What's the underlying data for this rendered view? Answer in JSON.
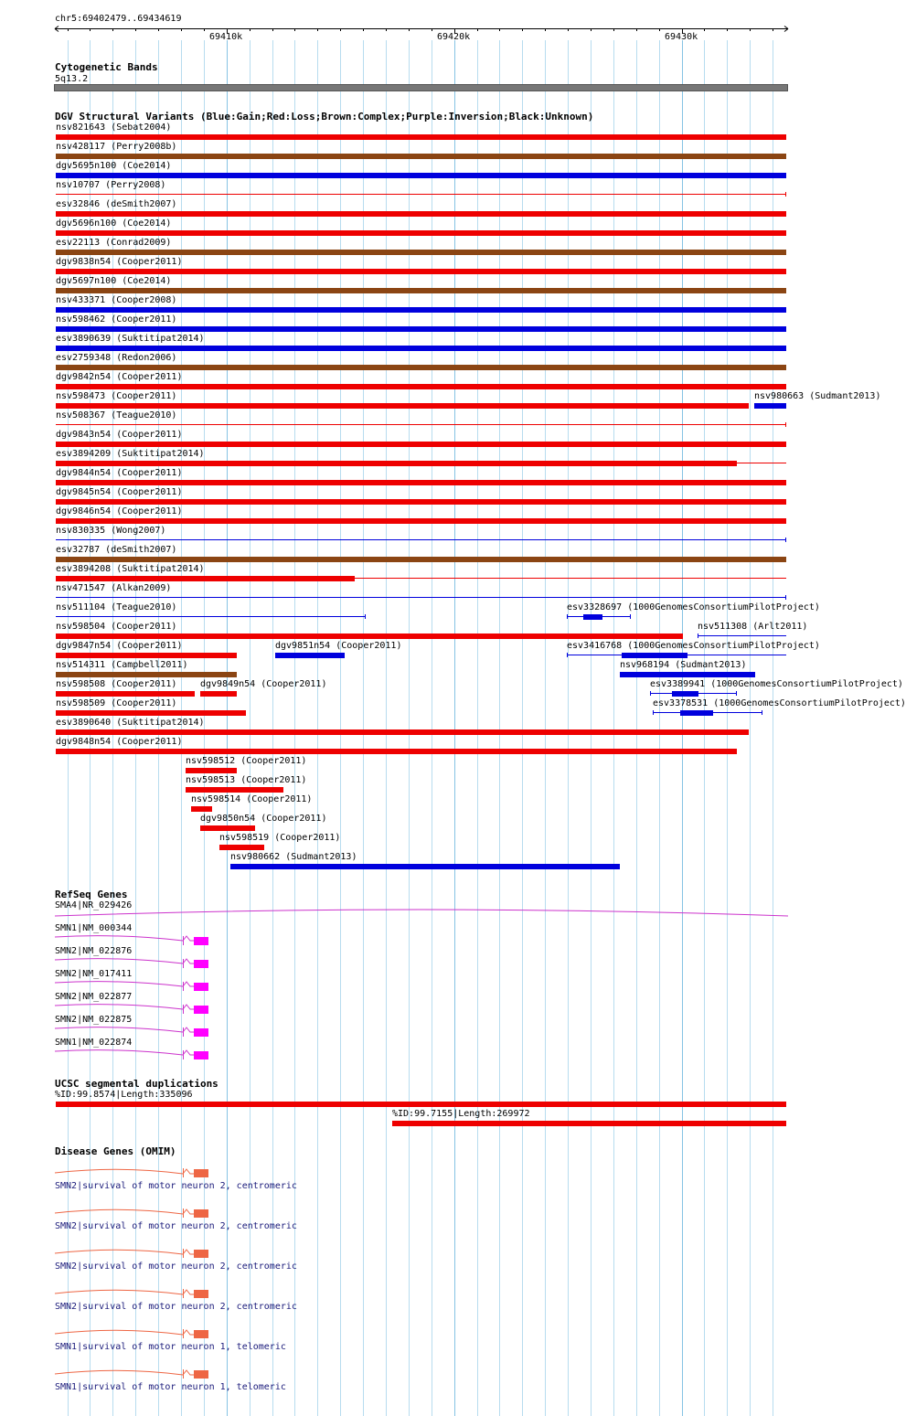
{
  "ruler": {
    "region": "chr5:69402479..69434619",
    "ticks": [
      "69410k",
      "69420k",
      "69430k"
    ]
  },
  "colors": {
    "gain": "#0000dd",
    "loss": "#ee0000",
    "complex": "#8b4513",
    "unknown": "#000000",
    "refseq": "#cc33cc",
    "refseq_block": "#ff00ff",
    "omim": "#ee6644",
    "band": "#777777",
    "grid": "#b7dcef"
  },
  "tracks": {
    "cytoband": {
      "title": "Cytogenetic Bands",
      "band": "5q13.2"
    },
    "dgv": {
      "title": "DGV Structural Variants (Blue:Gain;Red:Loss;Brown:Complex;Purple:Inversion;Black:Unknown)",
      "variants": [
        {
          "label": "nsv821643 (Sebat2004)",
          "type": "loss",
          "style": "thick",
          "start": 69402479,
          "end": 69434619
        },
        {
          "label": "nsv428117 (Perry2008b)",
          "type": "complex",
          "style": "thick",
          "start": 69402479,
          "end": 69434619
        },
        {
          "label": "dgv5695n100 (Coe2014)",
          "type": "gain",
          "style": "thick",
          "start": 69402479,
          "end": 69434619
        },
        {
          "label": "nsv10707 (Perry2008)",
          "type": "loss",
          "style": "thin",
          "start": 69402479,
          "end": 69434619
        },
        {
          "label": "esv32846 (deSmith2007)",
          "type": "loss",
          "style": "thick",
          "start": 69402479,
          "end": 69434619
        },
        {
          "label": "dgv5696n100 (Coe2014)",
          "type": "loss",
          "style": "thick",
          "start": 69402479,
          "end": 69434619
        },
        {
          "label": "esv22113 (Conrad2009)",
          "type": "complex",
          "style": "thick",
          "start": 69402479,
          "end": 69434619
        },
        {
          "label": "dgv9838n54 (Cooper2011)",
          "type": "loss",
          "style": "thick",
          "start": 69402479,
          "end": 69434619
        },
        {
          "label": "dgv5697n100 (Coe2014)",
          "type": "complex",
          "style": "thick",
          "start": 69402479,
          "end": 69434619
        },
        {
          "label": "nsv433371 (Cooper2008)",
          "type": "gain",
          "style": "thick",
          "start": 69402479,
          "end": 69434619
        },
        {
          "label": "nsv598462 (Cooper2011)",
          "type": "gain",
          "style": "thick",
          "start": 69402479,
          "end": 69434619
        },
        {
          "label": "esv3890639 (Suktitipat2014)",
          "type": "gain",
          "style": "thick",
          "start": 69402479,
          "end": 69434619
        },
        {
          "label": "esv2759348 (Redon2006)",
          "type": "complex",
          "style": "thick",
          "start": 69402479,
          "end": 69434619
        },
        {
          "label": "dgv9842n54 (Cooper2011)",
          "type": "loss",
          "style": "thick",
          "start": 69402479,
          "end": 69434619
        },
        {
          "label": "nsv598473 (Cooper2011)",
          "type": "loss",
          "style": "thick",
          "start": 69402479,
          "end": 69432950
        },
        {
          "label": "nsv980663 (Sudmant2013)",
          "type": "gain",
          "style": "thick",
          "start": 69433200,
          "end": 69434619
        },
        {
          "label": "nsv508367 (Teague2010)",
          "type": "loss",
          "style": "thin",
          "start": 69402479,
          "end": 69434619
        },
        {
          "label": "dgv9843n54 (Cooper2011)",
          "type": "loss",
          "style": "thick",
          "start": 69402479,
          "end": 69434619
        },
        {
          "label": "esv3894209 (Suktitipat2014)",
          "type": "loss",
          "style": "thick",
          "start": 69402479,
          "end": 69432450,
          "thin_to": 69434619
        },
        {
          "label": "dgv9844n54 (Cooper2011)",
          "type": "loss",
          "style": "thick",
          "start": 69402479,
          "end": 69434619
        },
        {
          "label": "dgv9845n54 (Cooper2011)",
          "type": "loss",
          "style": "thick",
          "start": 69402479,
          "end": 69434619
        },
        {
          "label": "dgv9846n54 (Cooper2011)",
          "type": "loss",
          "style": "thick",
          "start": 69402479,
          "end": 69434619
        },
        {
          "label": "nsv830335 (Wong2007)",
          "type": "gain",
          "style": "thin",
          "start": 69402479,
          "end": 69434619
        },
        {
          "label": "esv32787 (deSmith2007)",
          "type": "complex",
          "style": "thick",
          "start": 69402479,
          "end": 69434619
        },
        {
          "label": "esv3894208 (Suktitipat2014)",
          "type": "loss",
          "style": "thick",
          "start": 69402479,
          "end": 69415650,
          "thin_to": 69434619
        },
        {
          "label": "nsv471547 (Alkan2009)",
          "type": "gain",
          "style": "thin",
          "start": 69402479,
          "end": 69434619
        },
        {
          "label": "nsv511104 (Teague2010)",
          "type": "gain",
          "style": "thin",
          "start": 69402479,
          "end": 69416100
        },
        {
          "label": "esv3328697 (1000GenomesConsortiumPilotProject)",
          "type": "gain",
          "style": "blocks",
          "start": 69424950,
          "end": 69427750
        },
        {
          "label": "nsv598504 (Cooper2011)",
          "type": "loss",
          "style": "thick",
          "start": 69402479,
          "end": 69430050
        },
        {
          "label": "nsv511308 (Arlt2011)",
          "type": "gain",
          "style": "thin",
          "start": 69430700,
          "end": 69434619
        },
        {
          "label": "dgv9847n54 (Cooper2011)",
          "type": "loss",
          "style": "thick",
          "start": 69402479,
          "end": 69410450
        },
        {
          "label": "dgv9851n54 (Cooper2011)",
          "type": "gain",
          "style": "thick",
          "start": 69412150,
          "end": 69415200
        },
        {
          "label": "esv3416768 (1000GenomesConsortiumPilotProject)",
          "type": "gain",
          "style": "blocks",
          "start": 69424950,
          "end": 69434619
        },
        {
          "label": "nsv514311 (Campbell2011)",
          "type": "complex",
          "style": "thick",
          "start": 69402479,
          "end": 69410450
        },
        {
          "label": "nsv968194 (Sudmant2013)",
          "type": "gain",
          "style": "thick",
          "start": 69427300,
          "end": 69433250
        },
        {
          "label": "nsv598508 (Cooper2011)",
          "type": "loss",
          "style": "thick",
          "start": 69402479,
          "end": 69408600
        },
        {
          "label": "dgv9849n54 (Cooper2011)",
          "type": "loss",
          "style": "thick",
          "start": 69408850,
          "end": 69410450
        },
        {
          "label": "esv3389941 (1000GenomesConsortiumPilotProject)",
          "type": "gain",
          "style": "blocks",
          "start": 69428600,
          "end": 69432450
        },
        {
          "label": "nsv598509 (Cooper2011)",
          "type": "loss",
          "style": "thick",
          "start": 69402479,
          "end": 69410850
        },
        {
          "label": "esv3378531 (1000GenomesConsortiumPilotProject)",
          "type": "gain",
          "style": "blocks",
          "start": 69428750,
          "end": 69433550
        },
        {
          "label": "esv3890640 (Suktitipat2014)",
          "type": "loss",
          "style": "thick",
          "start": 69402479,
          "end": 69432950
        },
        {
          "label": "dgv9848n54 (Cooper2011)",
          "type": "loss",
          "style": "thick",
          "start": 69402479,
          "end": 69432450
        },
        {
          "label": "nsv598512 (Cooper2011)",
          "type": "loss",
          "style": "thick",
          "start": 69408200,
          "end": 69410450
        },
        {
          "label": "nsv598513 (Cooper2011)",
          "type": "loss",
          "style": "thick",
          "start": 69408200,
          "end": 69412500
        },
        {
          "label": "nsv598514 (Cooper2011)",
          "type": "loss",
          "style": "thick",
          "start": 69408450,
          "end": 69409350
        },
        {
          "label": "dgv9850n54 (Cooper2011)",
          "type": "loss",
          "style": "thick",
          "start": 69408850,
          "end": 69411250
        },
        {
          "label": "nsv598519 (Cooper2011)",
          "type": "loss",
          "style": "thick",
          "start": 69409700,
          "end": 69411650
        },
        {
          "label": "nsv980662 (Sudmant2013)",
          "type": "gain",
          "style": "thick",
          "start": 69410150,
          "end": 69427300
        }
      ]
    },
    "refseq": {
      "title": "RefSeq Genes",
      "genes": [
        {
          "label": "SMA4|NR_029426"
        },
        {
          "label": "SMN1|NM_000344"
        },
        {
          "label": "SMN2|NM_022876"
        },
        {
          "label": "SMN2|NM_017411"
        },
        {
          "label": "SMN2|NM_022877"
        },
        {
          "label": "SMN2|NM_022875"
        },
        {
          "label": "SMN1|NM_022874"
        }
      ]
    },
    "segdups": {
      "title": "UCSC segmental duplications",
      "items": [
        {
          "label": "%ID:99.8574|Length:335096",
          "start": 69402479,
          "end": 69434619
        },
        {
          "label": "%ID:99.7155|Length:269972",
          "start": 69417300,
          "end": 69434619
        }
      ]
    },
    "omim": {
      "title": "Disease Genes (OMIM)",
      "items": [
        {
          "label": "SMN2|survival of motor neuron 2, centromeric"
        },
        {
          "label": "SMN2|survival of motor neuron 2, centromeric"
        },
        {
          "label": "SMN2|survival of motor neuron 2, centromeric"
        },
        {
          "label": "SMN2|survival of motor neuron 2, centromeric"
        },
        {
          "label": "SMN1|survival of motor neuron 1, telomeric"
        },
        {
          "label": "SMN1|survival of motor neuron 1, telomeric"
        }
      ]
    }
  }
}
